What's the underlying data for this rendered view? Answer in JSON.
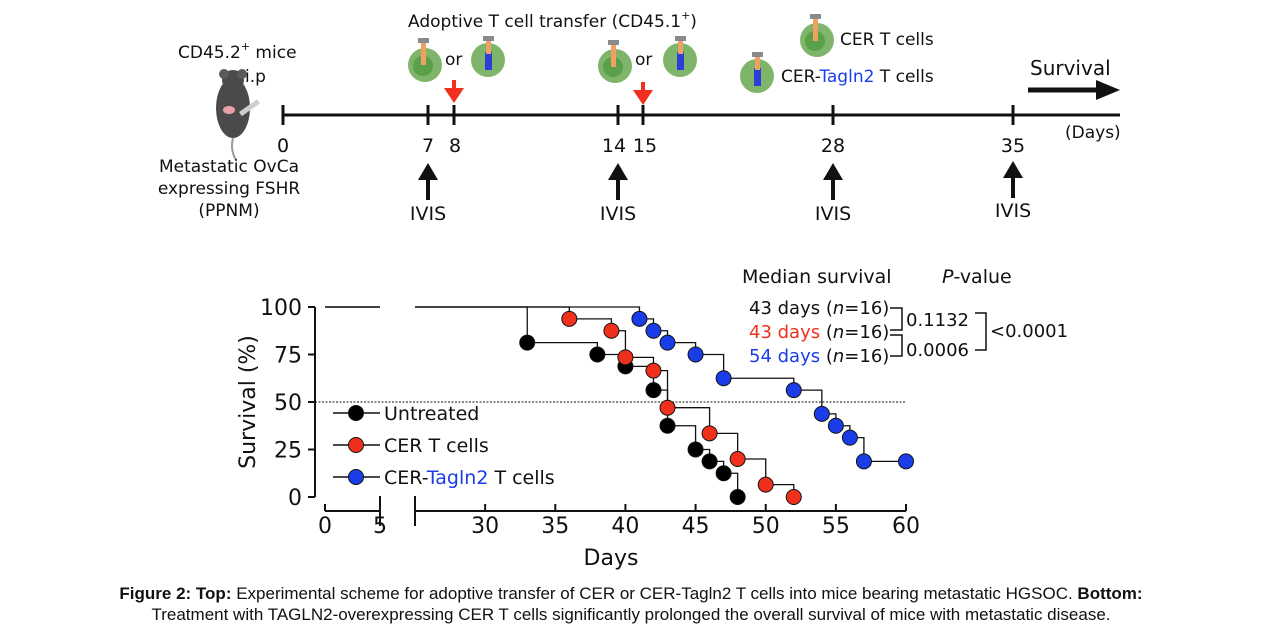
{
  "scheme": {
    "mouse_label": "CD45.2",
    "mouse_label_sup": "+",
    "mouse_label_tail": " mice",
    "route": "i.p",
    "tumor_lines": [
      "Metastatic OvCa",
      "expressing FSHR",
      "(PPNM)"
    ],
    "transfer_title": "Adoptive T cell transfer (CD45.1",
    "transfer_title_sup": "+",
    "transfer_title_end": ")",
    "or_label": "or",
    "legend_cer": "CER T cells",
    "legend_tagln_prefix": "CER-",
    "legend_tagln_gene": "Tagln2",
    "legend_tagln_suffix": " T cells",
    "survival_label": "Survival",
    "days_unit": "(Days)",
    "day_ticks": [
      "0",
      "7",
      "8",
      "14",
      "15",
      "28",
      "35"
    ],
    "ivis_label": "IVIS",
    "colors": {
      "transfer_arrow": "#f0301c",
      "cell_outer": "#7fb56a",
      "cell_inner": "#5aa04a",
      "car_gray": "#8a8a8a",
      "car_orange": "#f0a060",
      "car_blue": "#2a3fd8"
    }
  },
  "chart_data": {
    "type": "line",
    "subtype": "kaplan-meier step",
    "xlabel": "Days",
    "ylabel": "Survival (%)",
    "xlim": [
      0,
      60
    ],
    "x_axis_break": [
      5,
      25
    ],
    "ylim": [
      0,
      100
    ],
    "x_ticks": [
      "0",
      "5",
      "30",
      "35",
      "40",
      "45",
      "50",
      "55",
      "60"
    ],
    "y_ticks": [
      "0",
      "25",
      "50",
      "75",
      "100"
    ],
    "reference_line_y": 50,
    "series": [
      {
        "name": "Untreated",
        "color": "#000000",
        "x": [
          0,
          33,
          38,
          40,
          42,
          43,
          45,
          46,
          47,
          48
        ],
        "y": [
          100,
          81.25,
          75,
          68.75,
          56.25,
          37.5,
          25,
          18.75,
          12.5,
          0
        ]
      },
      {
        "name": "CER T cells",
        "color": "#f0301c",
        "x": [
          0,
          36,
          39,
          40,
          42,
          43,
          46,
          48,
          50,
          52
        ],
        "y": [
          100,
          93.75,
          87.5,
          73.5,
          66.5,
          47,
          33.5,
          20,
          6.5,
          0
        ]
      },
      {
        "name": "CER-Tagln2 T cells",
        "color": "#1a3de8",
        "x": [
          0,
          41,
          42,
          43,
          45,
          47,
          52,
          54,
          55,
          56,
          57,
          60
        ],
        "y": [
          100,
          93.75,
          87.5,
          81.25,
          75,
          62.5,
          56.25,
          43.75,
          37.5,
          31.25,
          18.75,
          18.75
        ]
      }
    ],
    "legend": [
      {
        "label": "Untreated",
        "color": "#000000"
      },
      {
        "label_prefix": "CER T cells",
        "color": "#f0301c"
      },
      {
        "label_prefix": "CER-",
        "label_gene": "Tagln2",
        "label_suffix": " T cells",
        "color": "#1a3de8"
      }
    ],
    "stats": {
      "median_header": "Median survival",
      "p_header_italic": "P",
      "p_header_rest": "-value",
      "rows": [
        {
          "days": "43 days",
          "n_open": " (",
          "n_italic": "n",
          "n_rest": "=16)",
          "color": "#111111"
        },
        {
          "days": "43 days",
          "n_open": " (",
          "n_italic": "n",
          "n_rest": "=16)",
          "color": "#f0301c"
        },
        {
          "days": "54 days",
          "n_open": " (",
          "n_italic": "n",
          "n_rest": "=16)",
          "color": "#1a3de8"
        }
      ],
      "p_pair_1": "0.1132",
      "p_pair_2": "0.0006",
      "p_overall": "<0.0001"
    }
  },
  "caption": {
    "top_label": "Figure 2: Top:",
    "top_text": " Experimental scheme for adoptive transfer of CER or CER-Tagln2 T cells into mice bearing metastatic HGSOC. ",
    "bottom_label": "Bottom:",
    "bottom_text": "Treatment with TAGLN2-overexpressing CER T cells significantly prolonged the overall survival of mice with metastatic disease."
  }
}
